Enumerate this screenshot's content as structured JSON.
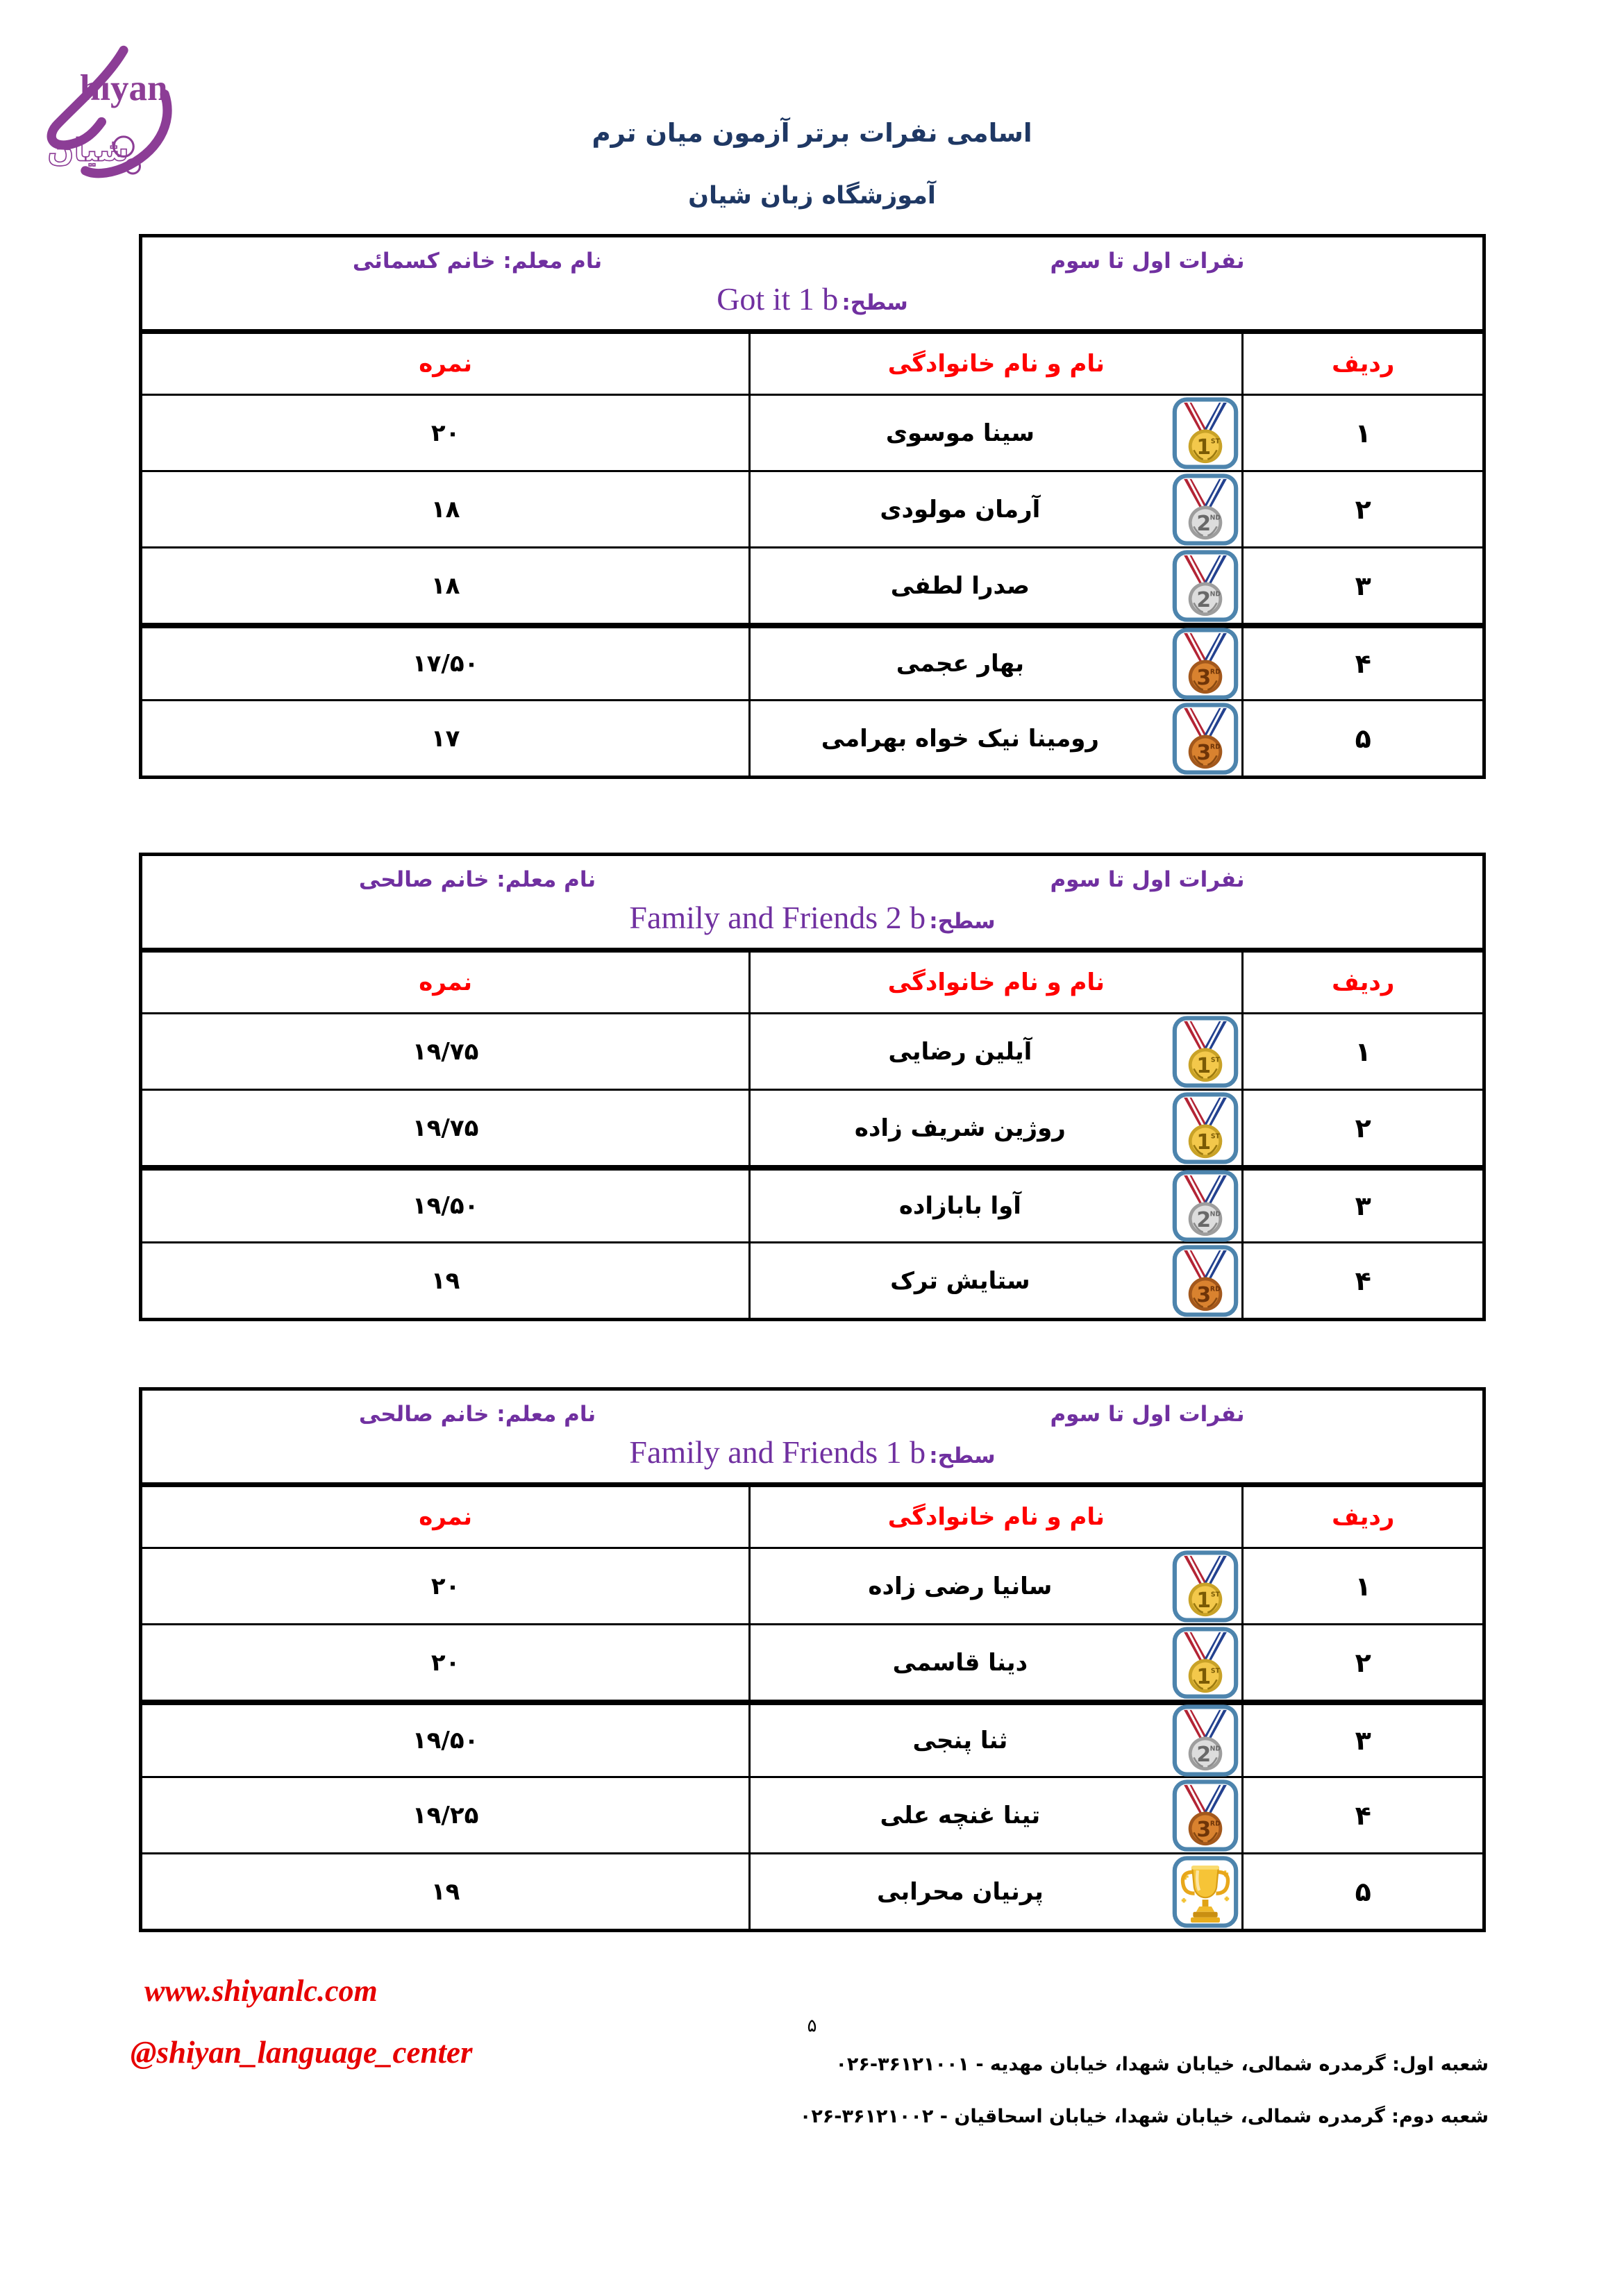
{
  "page": {
    "title_line1": "اسامی نفرات برتر آزمون میان ترم",
    "title_line2": "آموزشگاه زبان شیان",
    "page_number": "۵"
  },
  "logo": {
    "latin_text": "Shiyan",
    "persian_text": "شیان",
    "color": "#8c3d96"
  },
  "colors": {
    "title_navy": "#1f3864",
    "accent_purple": "#7030a0",
    "header_red": "#ff0000",
    "link_red": "#e60000",
    "table_border": "#000000",
    "medal_frame_blue": "#4d84ad"
  },
  "tables": [
    {
      "top_label": "نفرات اول تا سوم",
      "teacher_label": "نام معلم: خانم کسمائی",
      "level_label": "سطح:",
      "level_value": "Got it 1 b",
      "columns": {
        "score": "نمره",
        "name": "نام و نام خانوادگی",
        "rank": "ردیف"
      },
      "rows": [
        {
          "rank": "۱",
          "name": "سینا موسوی",
          "score": "۲۰",
          "medal": "gold",
          "medal_digit": "1",
          "medal_suffix": "ST",
          "icon": "first-place-medal-icon"
        },
        {
          "rank": "۲",
          "name": "آرمان مولودی",
          "score": "۱۸",
          "medal": "silver",
          "medal_digit": "2",
          "medal_suffix": "ND",
          "icon": "second-place-medal-icon"
        },
        {
          "rank": "۳",
          "name": "صدرا لطفی",
          "score": "۱۸",
          "medal": "silver",
          "medal_digit": "2",
          "medal_suffix": "ND",
          "icon": "second-place-medal-icon"
        },
        {
          "rank": "۴",
          "name": "بهار عجمی",
          "score": "۱۷/۵۰",
          "medal": "bronze",
          "medal_digit": "3",
          "medal_suffix": "RD",
          "icon": "third-place-medal-icon"
        },
        {
          "rank": "۵",
          "name": "رومینا نیک خواه بهرامی",
          "score": "۱۷",
          "medal": "bronze",
          "medal_digit": "3",
          "medal_suffix": "RD",
          "icon": "third-place-medal-icon"
        }
      ]
    },
    {
      "top_label": "نفرات اول تا سوم",
      "teacher_label": "نام معلم: خانم صالحی",
      "level_label": "سطح:",
      "level_value": "Family and Friends 2 b",
      "columns": {
        "score": "نمره",
        "name": "نام و نام خانوادگی",
        "rank": "ردیف"
      },
      "rows": [
        {
          "rank": "۱",
          "name": "آیلین رضایی",
          "score": "۱۹/۷۵",
          "medal": "gold",
          "medal_digit": "1",
          "medal_suffix": "ST",
          "icon": "first-place-medal-icon"
        },
        {
          "rank": "۲",
          "name": "روژین شریف زاده",
          "score": "۱۹/۷۵",
          "medal": "gold",
          "medal_digit": "1",
          "medal_suffix": "ST",
          "icon": "first-place-medal-icon"
        },
        {
          "rank": "۳",
          "name": "آوا بابازاده",
          "score": "۱۹/۵۰",
          "medal": "silver",
          "medal_digit": "2",
          "medal_suffix": "ND",
          "icon": "second-place-medal-icon"
        },
        {
          "rank": "۴",
          "name": "ستایش ترک",
          "score": "۱۹",
          "medal": "bronze",
          "medal_digit": "3",
          "medal_suffix": "RD",
          "icon": "third-place-medal-icon"
        }
      ]
    },
    {
      "top_label": "نفرات اول تا سوم",
      "teacher_label": "نام معلم: خانم صالحی",
      "level_label": "سطح:",
      "level_value": "Family and Friends 1 b",
      "columns": {
        "score": "نمره",
        "name": "نام و نام خانوادگی",
        "rank": "ردیف"
      },
      "rows": [
        {
          "rank": "۱",
          "name": "سانیا رضی زاده",
          "score": "۲۰",
          "medal": "gold",
          "medal_digit": "1",
          "medal_suffix": "ST",
          "icon": "first-place-medal-icon"
        },
        {
          "rank": "۲",
          "name": "دینا قاسمی",
          "score": "۲۰",
          "medal": "gold",
          "medal_digit": "1",
          "medal_suffix": "ST",
          "icon": "first-place-medal-icon"
        },
        {
          "rank": "۳",
          "name": "ثنا پنجی",
          "score": "۱۹/۵۰",
          "medal": "silver",
          "medal_digit": "2",
          "medal_suffix": "ND",
          "icon": "second-place-medal-icon"
        },
        {
          "rank": "۴",
          "name": "تینا غنچه علی",
          "score": "۱۹/۲۵",
          "medal": "bronze",
          "medal_digit": "3",
          "medal_suffix": "RD",
          "icon": "third-place-medal-icon"
        },
        {
          "rank": "۵",
          "name": "پرنیان محرابی",
          "score": "۱۹",
          "medal": "trophy",
          "medal_digit": "",
          "medal_suffix": "",
          "icon": "trophy-icon"
        }
      ]
    }
  ],
  "footer": {
    "website": "www.shiyanlc.com",
    "instagram": "@shiyan_language_center",
    "branch1_address": "شعبه اول: گرمدره شمالی، خیابان شهدا، خیابان مهدیه -",
    "branch1_phone": "۰۲۶-۳۶۱۲۱۰۰۱",
    "branch2_address": "شعبه دوم: گرمدره شمالی، خیابان شهدا، خیابان اسحاقیان -",
    "branch2_phone": "۰۲۶-۳۶۱۲۱۰۰۲"
  }
}
